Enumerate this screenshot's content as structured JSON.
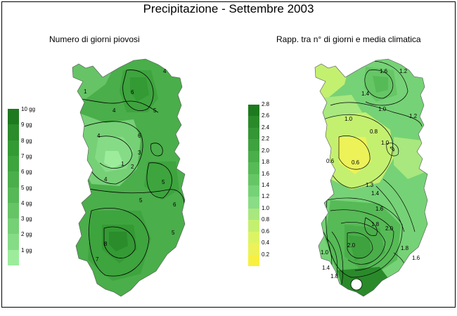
{
  "title": "Precipitazione - Settembre 2003",
  "left_map": {
    "subtitle": "Numero di giorni piovosi",
    "legend": {
      "labels": [
        "10 gg",
        "9 gg",
        "8 gg",
        "7 gg",
        "6 gg",
        "5 gg",
        "4 gg",
        "3 gg",
        "2 gg",
        "1 gg"
      ],
      "colors": [
        "#1e7a1e",
        "#2a8c2a",
        "#349a34",
        "#3ea43e",
        "#4aae4a",
        "#56b856",
        "#66c466",
        "#76d076",
        "#86dc86",
        "#9cec9c"
      ]
    },
    "contour_labels": [
      "1",
      "4",
      "6",
      "5",
      "4",
      "6",
      "3",
      "2",
      "1",
      "4",
      "5",
      "5",
      "6",
      "5",
      "7",
      "8",
      "4"
    ]
  },
  "right_map": {
    "subtitle": "Rapp. tra n° di giorni e media climatica",
    "legend": {
      "labels": [
        "2.8",
        "2.6",
        "2.4",
        "2.2",
        "2.0",
        "1.8",
        "1.6",
        "1.4",
        "1.2",
        "1.0",
        "0.8",
        "0.6",
        "0.4",
        "0.2"
      ],
      "colors": [
        "#1e7a1e",
        "#2a8a2a",
        "#349634",
        "#3ea23e",
        "#4aae4a",
        "#56ba56",
        "#66c666",
        "#76d276",
        "#8adc86",
        "#a8e87e",
        "#c4f070",
        "#dcf464",
        "#ecf258",
        "#f8f040"
      ]
    },
    "contour_labels": [
      "1.6",
      "1.2",
      "1.4",
      "1.2",
      "1.0",
      "0.8",
      "1.0",
      "0.6",
      "0.6",
      "1.0",
      "1.3",
      "1.4",
      "1.6",
      "1.8",
      "2.0",
      "1.8",
      "1.6",
      "2.0",
      "1.0",
      "1.4",
      "1.8"
    ]
  }
}
